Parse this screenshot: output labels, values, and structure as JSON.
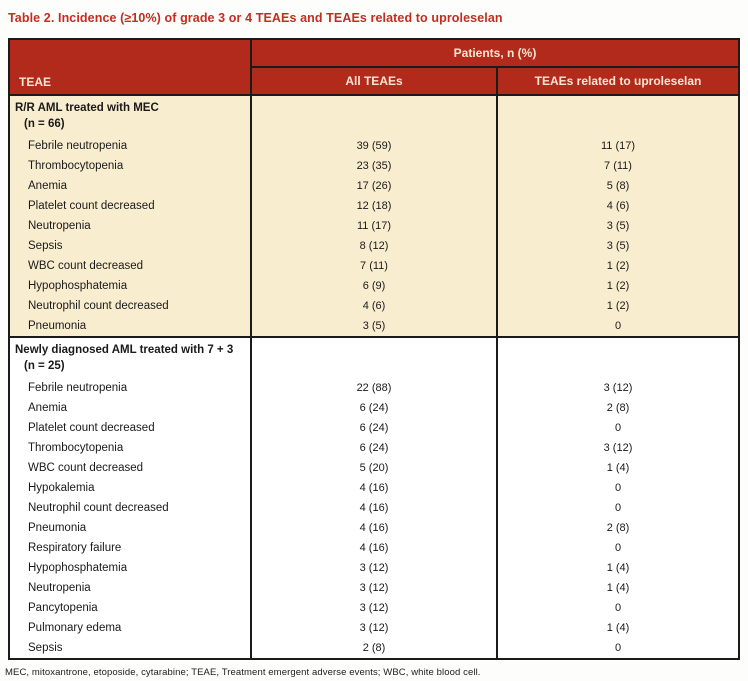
{
  "title": "Table 2. Incidence (≥10%) of grade 3 or 4 TEAEs and TEAEs related to uproleselan",
  "header": {
    "teae_col": "TEAE",
    "patients_span": "Patients, n (%)",
    "all_teaes_col": "All TEAEs",
    "related_col": "TEAEs related to uproleselan"
  },
  "sections": [
    {
      "group_line1": "R/R AML treated with MEC",
      "group_line2": "(n = 66)",
      "rows": [
        {
          "label": "Febrile neutropenia",
          "all": "39 (59)",
          "related": "11 (17)"
        },
        {
          "label": "Thrombocytopenia",
          "all": "23 (35)",
          "related": "7 (11)"
        },
        {
          "label": "Anemia",
          "all": "17 (26)",
          "related": "5 (8)"
        },
        {
          "label": "Platelet count decreased",
          "all": "12 (18)",
          "related": "4 (6)"
        },
        {
          "label": "Neutropenia",
          "all": "11 (17)",
          "related": "3 (5)"
        },
        {
          "label": "Sepsis",
          "all": "8 (12)",
          "related": "3 (5)"
        },
        {
          "label": "WBC count decreased",
          "all": "7 (11)",
          "related": "1 (2)"
        },
        {
          "label": "Hypophosphatemia",
          "all": "6 (9)",
          "related": "1 (2)"
        },
        {
          "label": "Neutrophil count decreased",
          "all": "4 (6)",
          "related": "1 (2)"
        },
        {
          "label": "Pneumonia",
          "all": "3 (5)",
          "related": "0"
        }
      ]
    },
    {
      "group_line1": "Newly diagnosed AML treated with 7 + 3",
      "group_line2": "(n = 25)",
      "rows": [
        {
          "label": "Febrile neutropenia",
          "all": "22 (88)",
          "related": "3 (12)"
        },
        {
          "label": "Anemia",
          "all": "6 (24)",
          "related": "2 (8)"
        },
        {
          "label": "Platelet count decreased",
          "all": "6 (24)",
          "related": "0"
        },
        {
          "label": "Thrombocytopenia",
          "all": "6 (24)",
          "related": "3 (12)"
        },
        {
          "label": "WBC count decreased",
          "all": "5 (20)",
          "related": "1 (4)"
        },
        {
          "label": "Hypokalemia",
          "all": "4 (16)",
          "related": "0"
        },
        {
          "label": "Neutrophil count decreased",
          "all": "4 (16)",
          "related": "0"
        },
        {
          "label": "Pneumonia",
          "all": "4 (16)",
          "related": "2 (8)"
        },
        {
          "label": "Respiratory failure",
          "all": "4 (16)",
          "related": "0"
        },
        {
          "label": "Hypophosphatemia",
          "all": "3 (12)",
          "related": "1 (4)"
        },
        {
          "label": "Neutropenia",
          "all": "3 (12)",
          "related": "1 (4)"
        },
        {
          "label": "Pancytopenia",
          "all": "3 (12)",
          "related": "0"
        },
        {
          "label": "Pulmonary edema",
          "all": "3 (12)",
          "related": "1 (4)"
        },
        {
          "label": "Sepsis",
          "all": "2 (8)",
          "related": "0"
        }
      ]
    }
  ],
  "footnote": "MEC, mitoxantrone, etoposide, cytarabine; TEAE, Treatment emergent adverse events; WBC, white blood cell.",
  "colors": {
    "header_red": "#b12a1b",
    "title_red": "#c22d1f",
    "section1_beige": "#f9edd0",
    "header_text_cream": "#f8e7d2",
    "border_black": "#1b1b1b"
  }
}
